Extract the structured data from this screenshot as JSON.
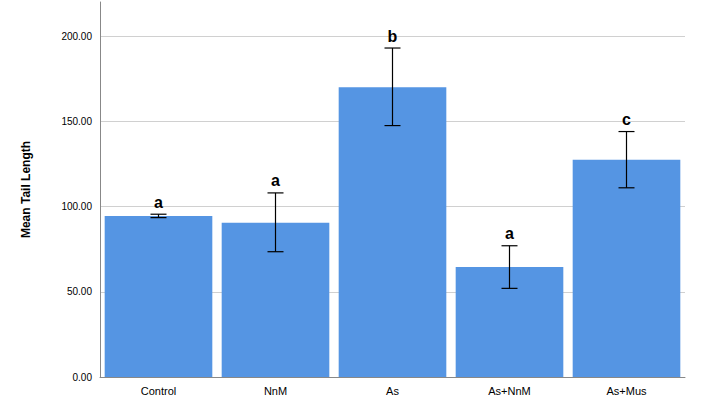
{
  "chart_data": {
    "type": "bar",
    "y_label": "Mean Tail Length",
    "categories": [
      "Control",
      "NnM",
      "As",
      "As+NnM",
      "As+Mus"
    ],
    "values": [
      94.5,
      90.5,
      170,
      64.5,
      127.5
    ],
    "error_bars": [
      [
        93.5,
        95.5
      ],
      [
        73.5,
        108
      ],
      [
        147.5,
        193
      ],
      [
        52,
        77
      ],
      [
        111,
        144
      ]
    ],
    "annotations": [
      "a",
      "a",
      "b",
      "a",
      "c"
    ],
    "color": "#5595e3",
    "ylim": [
      0,
      220
    ],
    "yticks": [
      {
        "value": 0,
        "label": "0.00"
      },
      {
        "value": 50,
        "label": "50.00"
      },
      {
        "value": 100,
        "label": "100.00"
      },
      {
        "value": 150,
        "label": "150.00"
      },
      {
        "value": 200,
        "label": "200.00"
      }
    ],
    "grid": true
  }
}
